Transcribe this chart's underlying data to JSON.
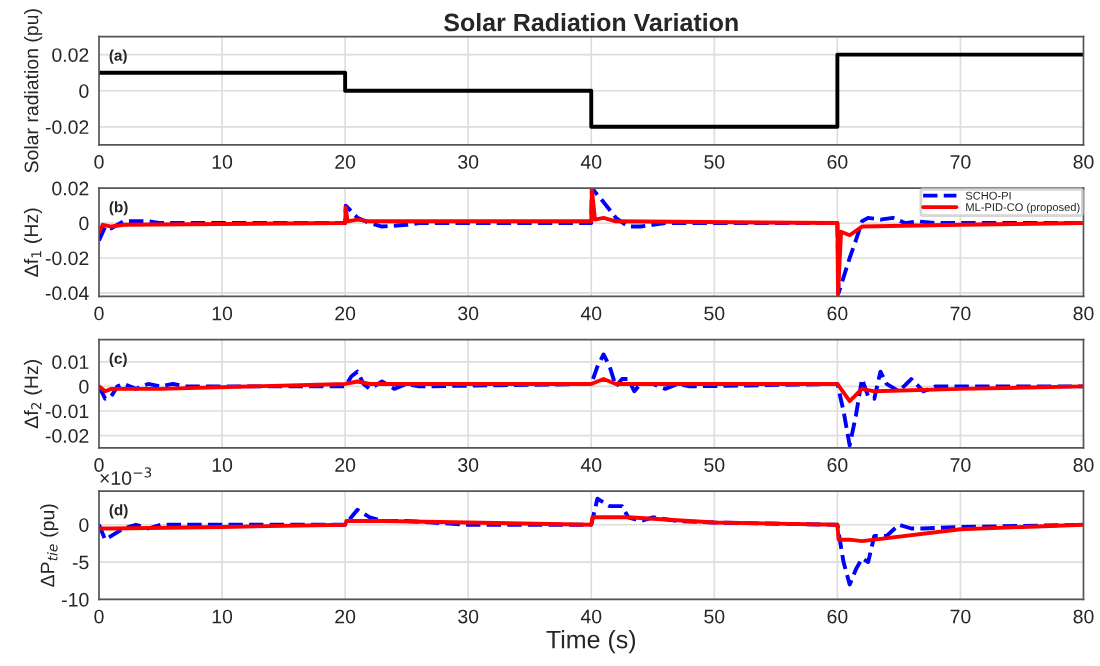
{
  "chart_data": [
    {
      "type": "step",
      "title": "Solar Radiation Variation",
      "ylabel": "Solar radiation (pu)",
      "annotations": [
        "(a)"
      ],
      "xlim": [
        0,
        80
      ],
      "xticks": [
        0,
        10,
        20,
        30,
        40,
        50,
        60,
        70,
        80
      ],
      "ylim": [
        -0.03,
        0.03
      ],
      "yticks": [
        -0.02,
        0,
        0.02
      ],
      "grid": true,
      "legend": false,
      "series": [
        {
          "color": "#000000",
          "x": [
            0,
            20,
            40,
            60,
            80
          ],
          "values": [
            0.01,
            0,
            -0.02,
            0.02,
            0.02
          ]
        }
      ]
    },
    {
      "type": "line",
      "ylabel": "Δf$_{1}$ (Hz)",
      "annotations": [
        "(b)"
      ],
      "xlim": [
        0,
        80
      ],
      "xticks": [
        0,
        10,
        20,
        30,
        40,
        50,
        60,
        70,
        80
      ],
      "ylim": [
        -0.042,
        0.02
      ],
      "yticks": [
        -0.04,
        -0.02,
        0,
        0.02
      ],
      "grid": true,
      "legend": "top right",
      "series": [
        {
          "name": "SCHO-PI",
          "color": "#0000ff",
          "line_style": "dashed",
          "x": [
            0,
            0.5,
            1,
            2,
            3,
            4,
            5,
            20,
            20.05,
            21,
            22,
            23,
            25,
            26,
            40,
            40.05,
            41,
            42,
            43,
            44,
            45,
            46,
            48,
            60,
            60.1,
            61,
            61.5,
            62,
            62.5,
            63.5,
            64.5,
            65.5,
            66.5,
            68,
            80
          ],
          "values": [
            -0.01,
            -0.002,
            -0.003,
            0.001,
            0.001,
            0.001,
            0,
            0,
            0.01,
            0.003,
            0,
            -0.002,
            -0.001,
            0,
            0,
            0.02,
            0.012,
            0.003,
            -0.002,
            -0.002,
            -0.001,
            0,
            0,
            0,
            -0.04,
            -0.02,
            -0.01,
            0.001,
            0.003,
            0.002,
            0.003,
            0,
            0.001,
            0,
            0
          ]
        },
        {
          "name": "ML-PID-CO (proposed)",
          "color": "#ff0000",
          "line_style": "solid",
          "x": [
            0,
            0.3,
            1,
            2,
            20,
            20.05,
            20.2,
            21,
            22,
            40,
            40.05,
            40.3,
            41,
            42,
            60,
            60.05,
            60.3,
            61,
            62,
            70,
            80
          ],
          "values": [
            -0.005,
            -0.001,
            -0.002,
            -0.001,
            0,
            0.009,
            0.001,
            0.002,
            0.001,
            0.001,
            0.02,
            0.002,
            0.003,
            0.001,
            0,
            -0.041,
            -0.005,
            -0.007,
            -0.002,
            -0.001,
            0
          ]
        }
      ]
    },
    {
      "type": "line",
      "ylabel": "Δf$_{2}$ (Hz)",
      "annotations": [
        "(c)"
      ],
      "xlim": [
        0,
        80
      ],
      "xticks": [
        0,
        10,
        20,
        30,
        40,
        50,
        60,
        70,
        80
      ],
      "ylim": [
        -0.025,
        0.019
      ],
      "yticks": [
        -0.02,
        -0.01,
        0,
        0.01
      ],
      "grid": true,
      "legend": false,
      "series": [
        {
          "color": "#0000ff",
          "line_style": "dashed",
          "x": [
            0,
            0.5,
            1,
            1.5,
            2,
            3,
            4,
            5,
            6,
            7,
            20,
            20.5,
            21,
            21.5,
            22,
            23,
            24,
            25,
            26,
            40,
            40.5,
            41,
            41.5,
            42,
            42.5,
            43,
            43.5,
            44,
            45,
            46,
            47,
            48,
            60,
            60.5,
            61,
            61.5,
            62,
            62.5,
            63,
            63.5,
            64,
            65,
            66,
            67,
            68,
            70,
            80
          ],
          "values": [
            0,
            -0.005,
            -0.004,
            0,
            0.001,
            -0.001,
            0.001,
            0,
            0.001,
            0,
            0,
            0.004,
            0.006,
            0.001,
            -0.001,
            0.002,
            -0.001,
            0.001,
            0,
            0.001,
            0.008,
            0.013,
            0.008,
            0,
            0.003,
            0.003,
            -0.002,
            0.001,
            0.001,
            -0.001,
            0.001,
            0,
            0.001,
            -0.01,
            -0.024,
            -0.012,
            0.003,
            -0.004,
            -0.005,
            0.006,
            0.001,
            -0.002,
            0.003,
            -0.002,
            0,
            0,
            0
          ]
        },
        {
          "color": "#ff0000",
          "line_style": "solid",
          "x": [
            0,
            0.5,
            1,
            5,
            20,
            21,
            22,
            40,
            41,
            42,
            60,
            61,
            62,
            63,
            70,
            80
          ],
          "values": [
            0,
            -0.002,
            -0.001,
            -0.001,
            0.001,
            0.002,
            0.001,
            0.001,
            0.003,
            0.001,
            0.001,
            -0.006,
            -0.001,
            -0.002,
            -0.001,
            0
          ]
        }
      ]
    },
    {
      "type": "line",
      "ylabel": "ΔP$_{tie}$ (pu)",
      "xlabel": "Time (s)",
      "annotations": [
        "(d)",
        "×10$^{−3}$"
      ],
      "xlim": [
        0,
        80
      ],
      "xticks": [
        0,
        10,
        20,
        30,
        40,
        50,
        60,
        70,
        80
      ],
      "ylim": [
        -10,
        4.5
      ],
      "yticks": [
        -10,
        -5,
        0
      ],
      "grid": true,
      "legend": false,
      "series": [
        {
          "color": "#0000ff",
          "line_style": "dashed",
          "x": [
            0,
            0.5,
            1,
            2,
            3,
            4,
            5,
            20,
            20.5,
            21,
            22,
            23,
            25,
            30,
            40,
            40.5,
            41.5,
            42.5,
            43,
            44,
            45,
            47,
            50,
            60,
            60.5,
            61,
            61.5,
            62,
            62.5,
            63,
            64,
            65,
            66,
            67,
            70,
            80
          ],
          "values": [
            0,
            -2,
            -1.5,
            -0.5,
            0,
            -0.5,
            0,
            0,
            1,
            2,
            1,
            0.5,
            0.5,
            0,
            0,
            3.5,
            2.5,
            2.5,
            1,
            0.5,
            1,
            0.5,
            0.3,
            0,
            -5,
            -8,
            -6,
            -4.5,
            -5,
            -1.5,
            -1.5,
            0,
            -0.5,
            -0.5,
            -0.3,
            0
          ]
        },
        {
          "color": "#ff0000",
          "line_style": "solid",
          "x": [
            0,
            1,
            10,
            20,
            20.1,
            23,
            40,
            40.1,
            43,
            50,
            60,
            60.1,
            61,
            62,
            70,
            80
          ],
          "values": [
            -0.5,
            -0.5,
            -0.3,
            0,
            0.5,
            0.5,
            0,
            1,
            1,
            0.3,
            0,
            -2,
            -2,
            -2.2,
            -0.6,
            0
          ]
        }
      ]
    }
  ]
}
